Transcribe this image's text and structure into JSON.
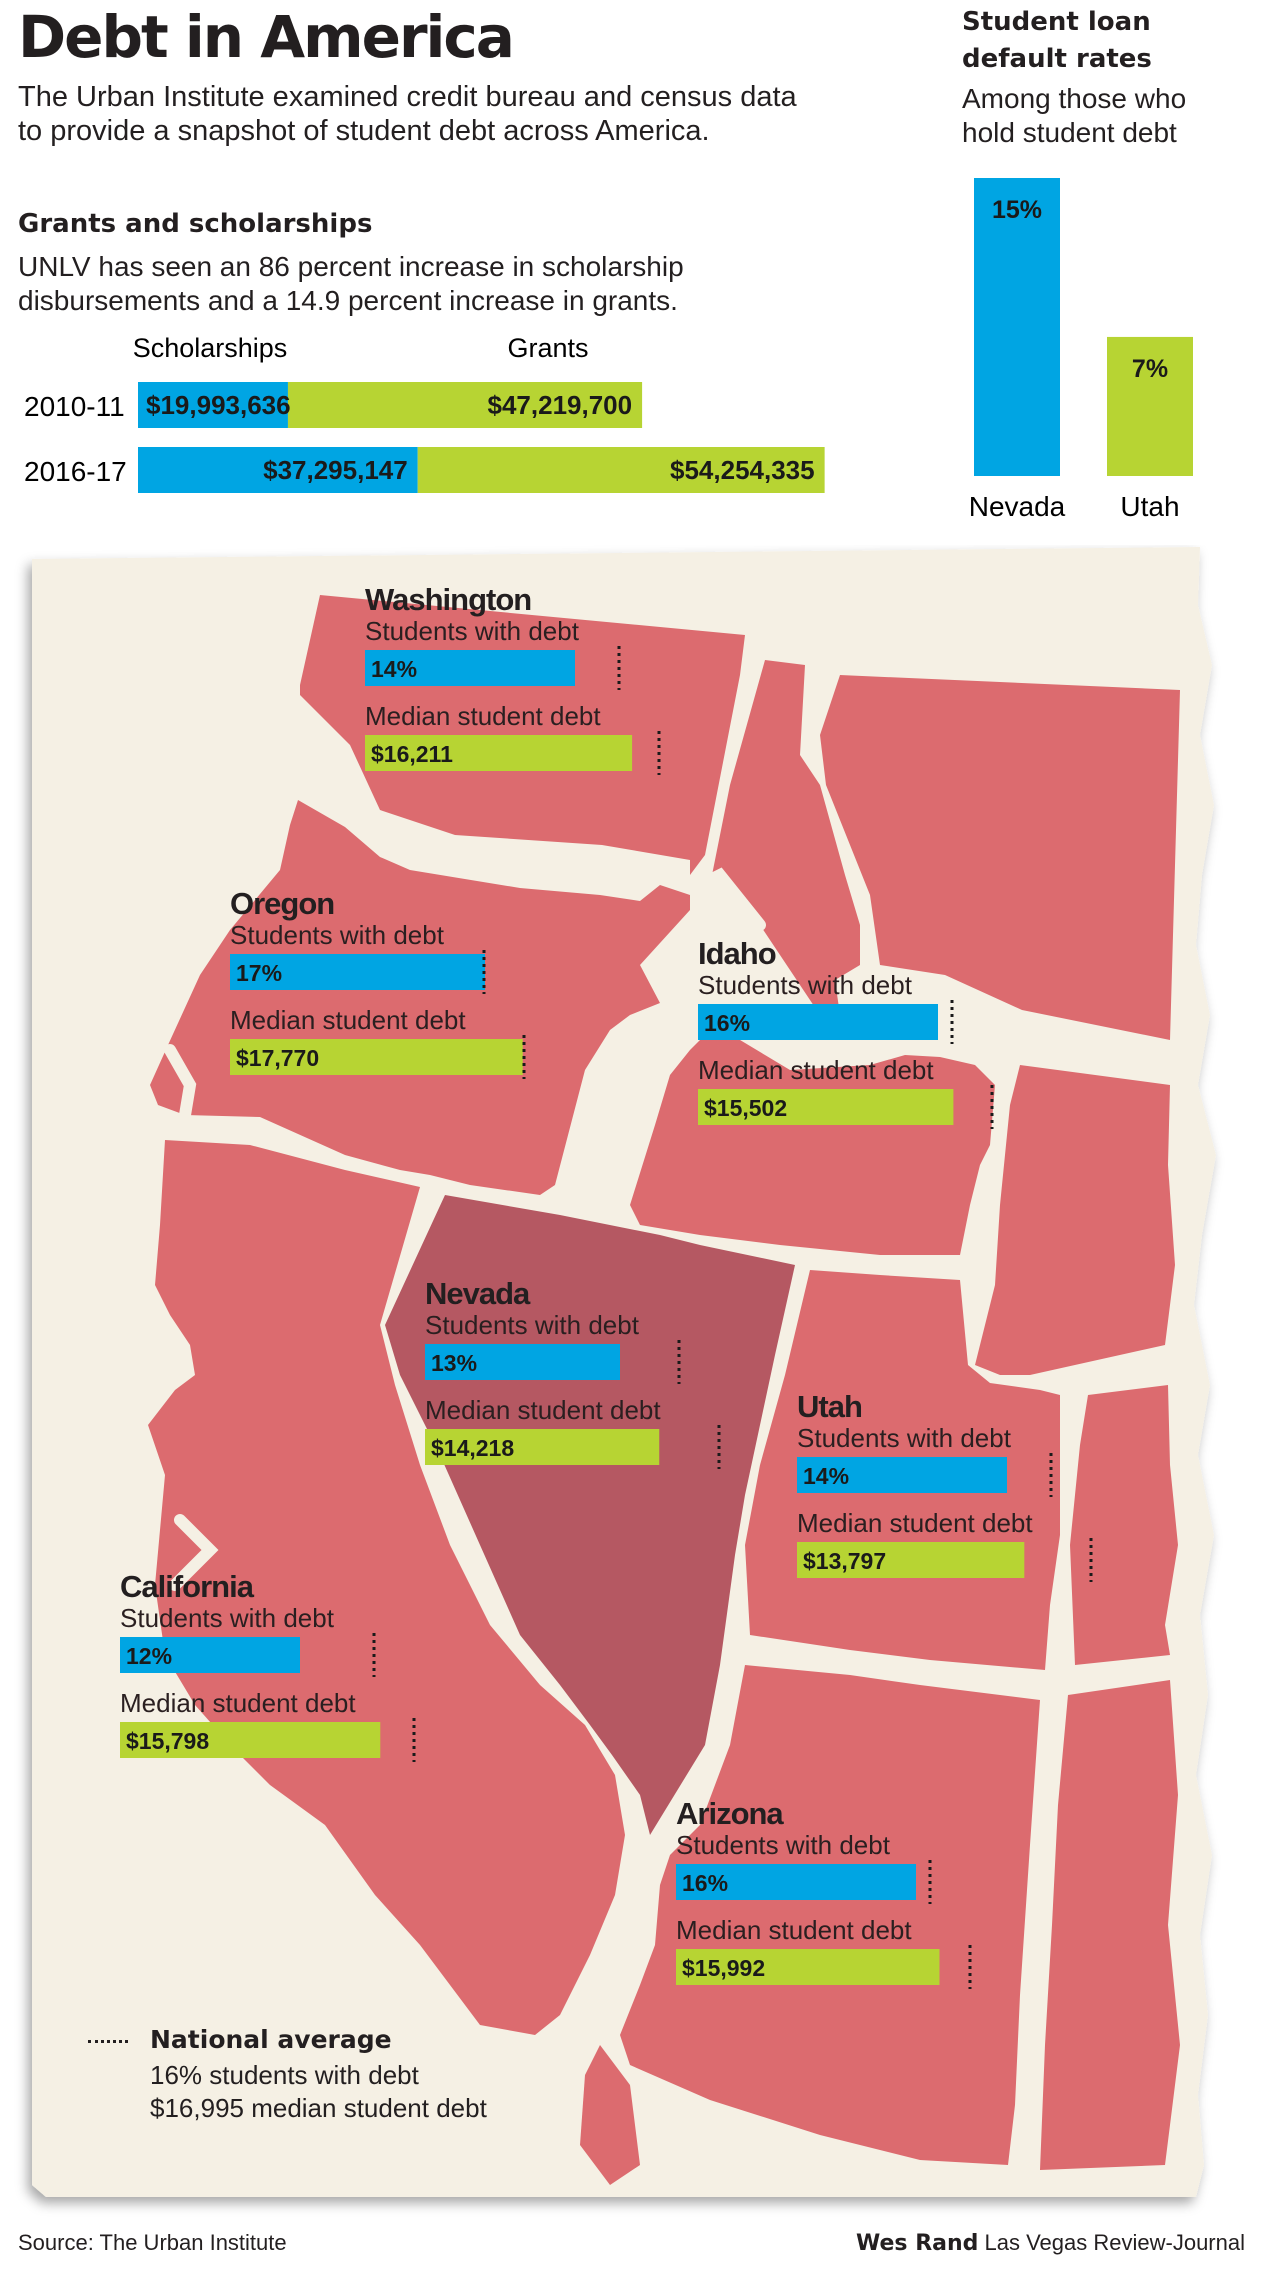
{
  "header": {
    "title": "Debt in America",
    "intro_line1": "The Urban Institute examined credit bureau and census data",
    "intro_line2": "to provide a snapshot of student debt across America."
  },
  "grants": {
    "heading": "Grants and scholarships",
    "text_line1": "UNLV has seen an 86 percent increase in scholarship",
    "text_line2": "disbursements and a 14.9 percent increase in grants."
  },
  "default_rates": {
    "title_line1": "Student loan",
    "title_line2": "default rates",
    "sub_line1": "Among those who",
    "sub_line2": "hold student debt"
  },
  "legend": {
    "label": "National average",
    "line1": "16% students with debt",
    "line2": "$16,995 median student debt"
  },
  "footer": {
    "source": "Source: The Urban Institute",
    "credit_name": "Wes Rand",
    "credit_org": "Las Vegas Review-Journal"
  },
  "colors": {
    "blue": "#00a5e3",
    "green": "#b7d433",
    "map_fill": "#dc6b6f",
    "nevada_fill": "#b55862",
    "background_paper": "#f5f0e4",
    "border_roads": "#f5f0e4"
  },
  "chart_data": [
    {
      "type": "bar",
      "orientation": "horizontal-stacked",
      "categories": [
        "2010-11",
        "2016-17"
      ],
      "series": [
        {
          "name": "Scholarships",
          "values": [
            19993636,
            37295147
          ],
          "labels": [
            "$19,993,636",
            "$37,295,147"
          ]
        },
        {
          "name": "Grants",
          "values": [
            47219700,
            54254335
          ],
          "labels": [
            "$47,219,700",
            "$54,254,335"
          ]
        }
      ]
    },
    {
      "type": "bar",
      "categories": [
        "Nevada",
        "Utah"
      ],
      "values": [
        15,
        7
      ],
      "labels": [
        "15%",
        "7%"
      ]
    },
    {
      "type": "bar",
      "orientation": "horizontal",
      "national_average": {
        "students_with_debt_pct": 16,
        "median_student_debt": 16995
      },
      "metric_labels": [
        "Students with debt",
        "Median student debt"
      ],
      "states": [
        {
          "name": "Washington",
          "students_with_debt_pct": 14,
          "students_label": "14%",
          "median_debt": 16211,
          "median_label": "$16,211"
        },
        {
          "name": "Oregon",
          "students_with_debt_pct": 17,
          "students_label": "17%",
          "median_debt": 17770,
          "median_label": "$17,770"
        },
        {
          "name": "Idaho",
          "students_with_debt_pct": 16,
          "students_label": "16%",
          "median_debt": 15502,
          "median_label": "$15,502"
        },
        {
          "name": "Nevada",
          "students_with_debt_pct": 13,
          "students_label": "13%",
          "median_debt": 14218,
          "median_label": "$14,218"
        },
        {
          "name": "Utah",
          "students_with_debt_pct": 14,
          "students_label": "14%",
          "median_debt": 13797,
          "median_label": "$13,797"
        },
        {
          "name": "California",
          "students_with_debt_pct": 12,
          "students_label": "12%",
          "median_debt": 15798,
          "median_label": "$15,798"
        },
        {
          "name": "Arizona",
          "students_with_debt_pct": 16,
          "students_label": "16%",
          "median_debt": 15992,
          "median_label": "$15,992"
        }
      ]
    }
  ]
}
